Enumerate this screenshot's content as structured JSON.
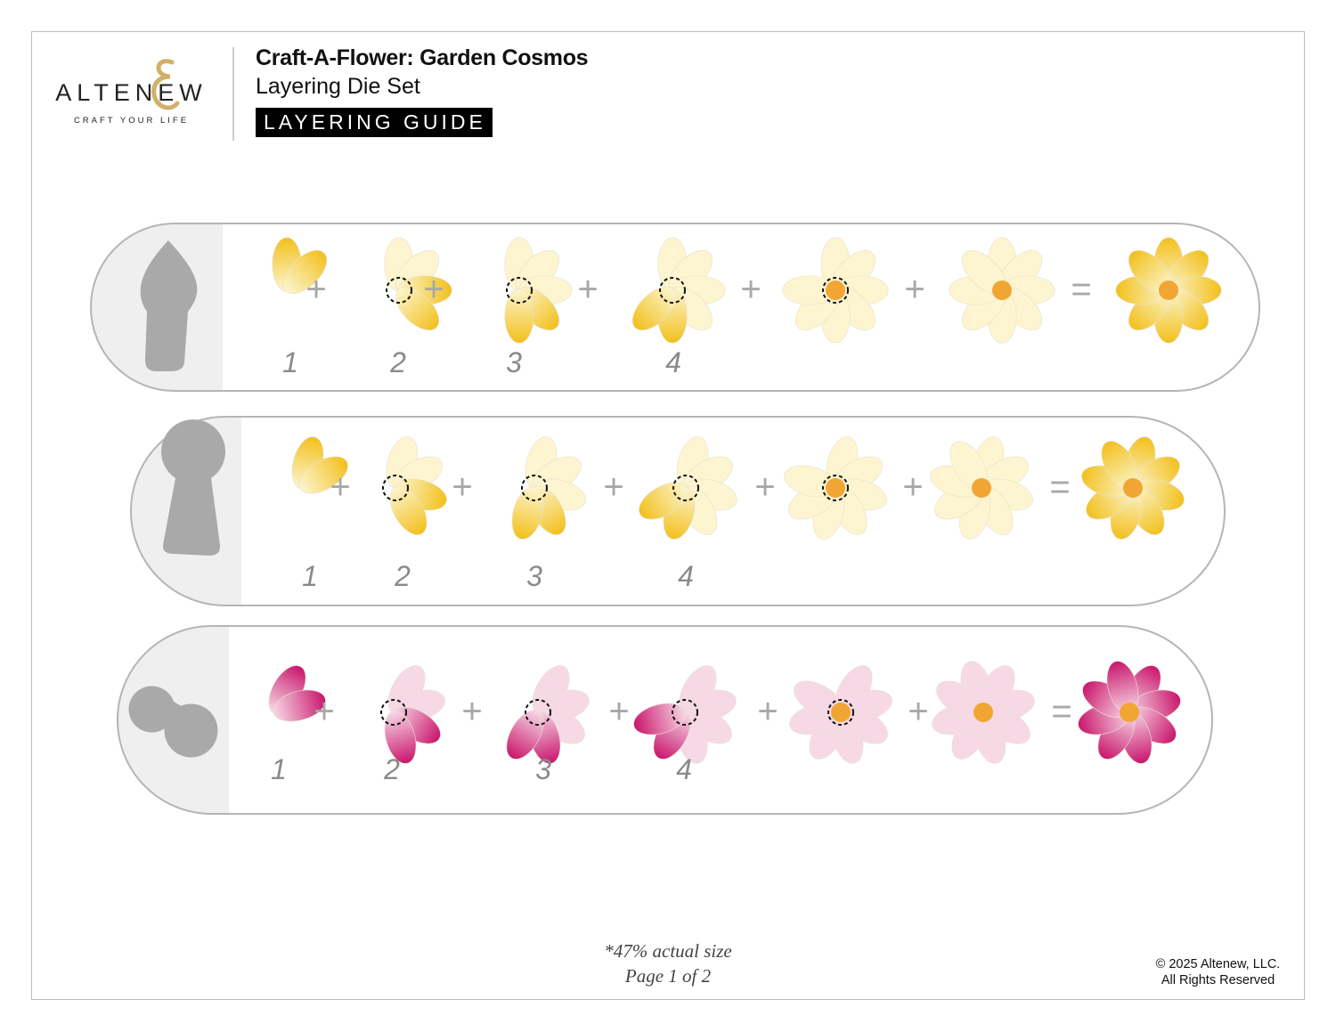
{
  "header": {
    "logo": {
      "wordmark": "ALTENEW",
      "ampersand": "&",
      "tagline": "CRAFT YOUR LIFE"
    },
    "title": "Craft-A-Flower: Garden Cosmos",
    "subtitle": "Layering Die Set",
    "badge": "LAYERING GUIDE"
  },
  "colors": {
    "yellow": "#f2c01c",
    "yellow_pale": "#fcf5cf",
    "pink": "#c9166c",
    "pink_pale": "#f7d9e6",
    "center": "#f1a634",
    "sign": "#a8a8a8",
    "step_number": "#8a8a8a",
    "panel": "#efefef",
    "silhouette": "#a9a9a9"
  },
  "plus_sign": "+",
  "equals_sign": "=",
  "rows": [
    {
      "silhouette": "keyhole-tall",
      "color": "yellow",
      "steps": [
        "1",
        "2",
        "3",
        "4"
      ]
    },
    {
      "silhouette": "keyhole-round",
      "color": "yellow",
      "steps": [
        "1",
        "2",
        "3",
        "4"
      ]
    },
    {
      "silhouette": "peanut",
      "color": "pink",
      "steps": [
        "1",
        "2",
        "3",
        "4"
      ]
    }
  ],
  "footer": {
    "scale_note": "*47% actual size",
    "page": "Page 1 of 2",
    "copyright": "© 2025 Altenew, LLC.",
    "rights": "All Rights Reserved"
  }
}
